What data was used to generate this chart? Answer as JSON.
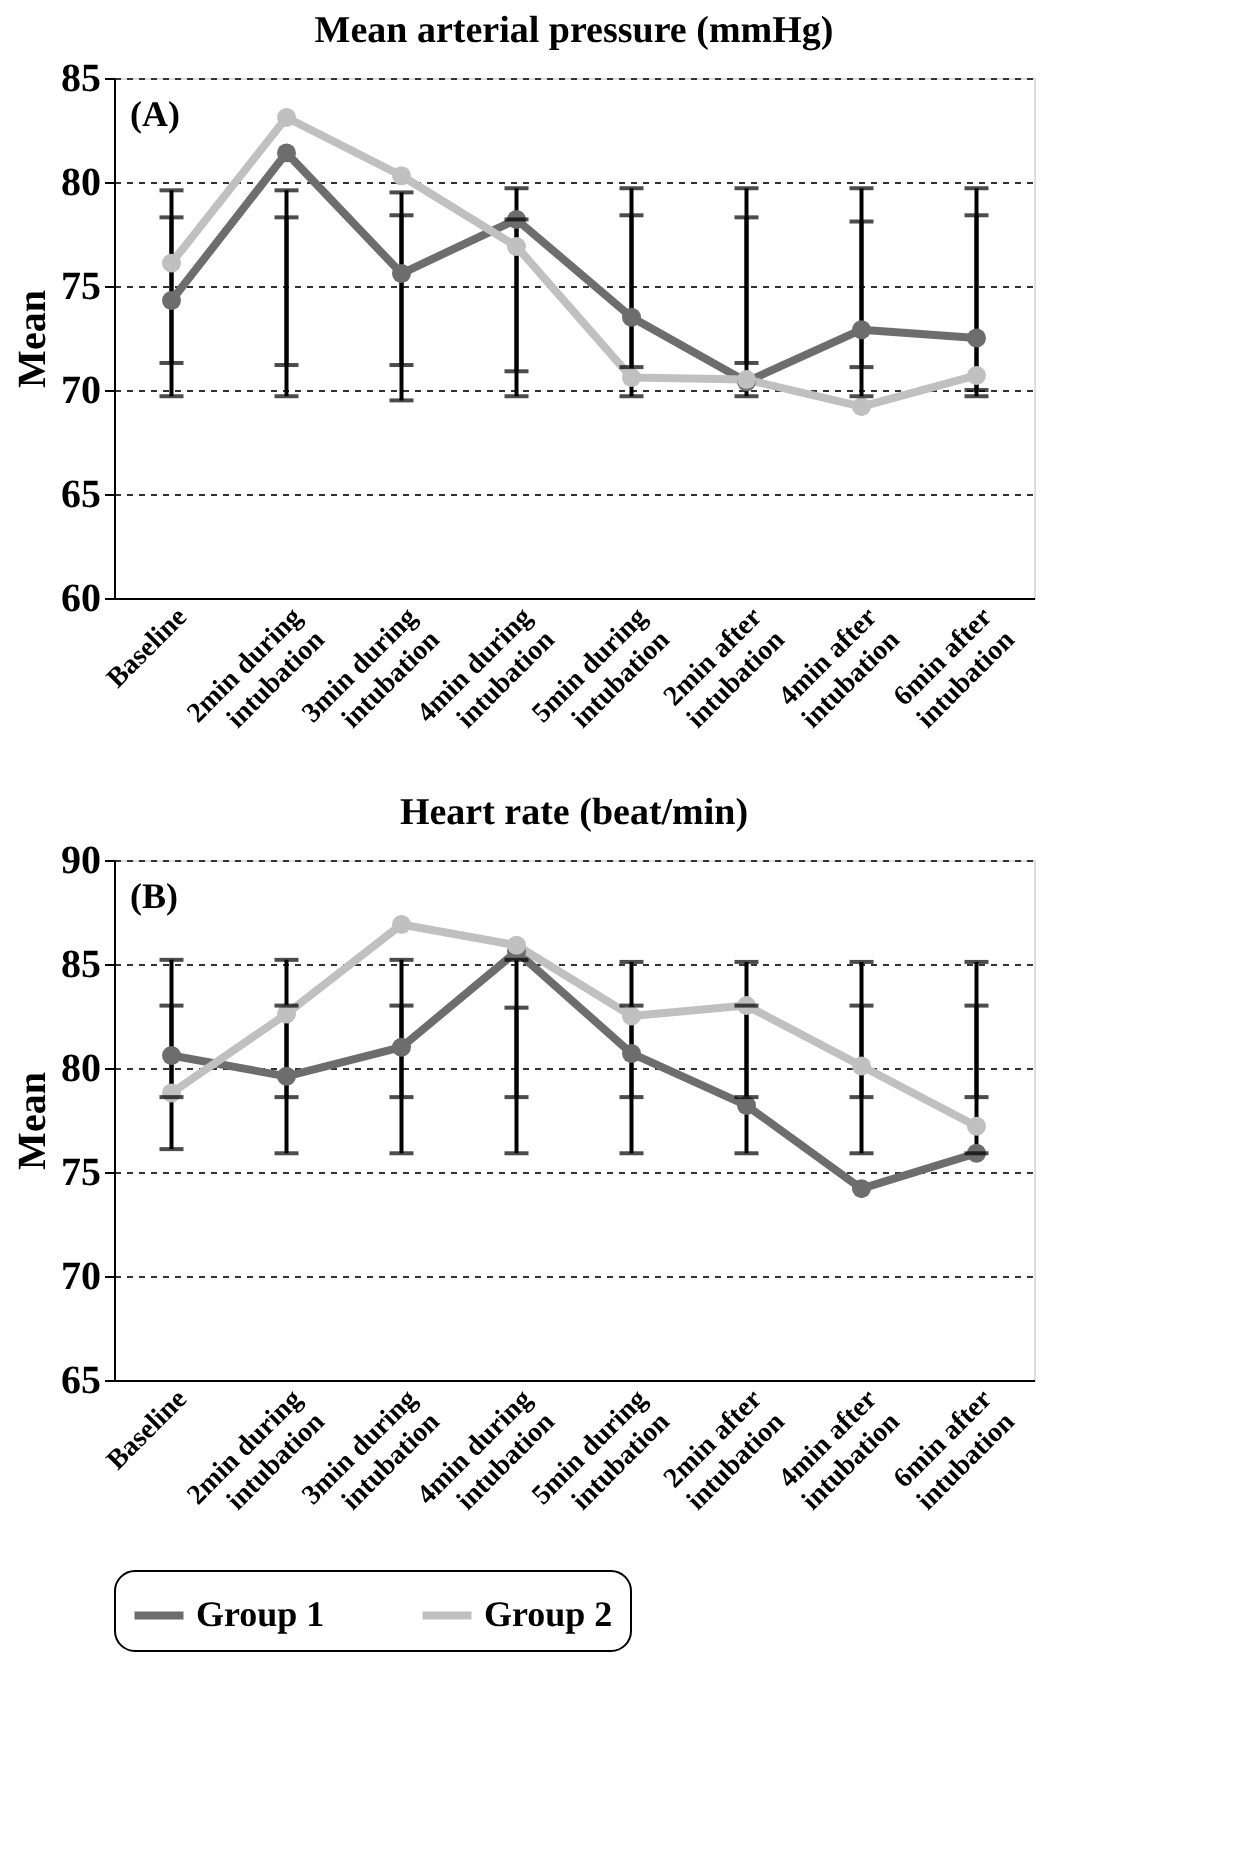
{
  "chart_data": [
    {
      "type": "line",
      "title": "Mean arterial pressure (mmHg)",
      "ylabel": "Mean",
      "annotations": [
        "(A)"
      ],
      "categories": [
        "Baseline",
        "2min during intubation",
        "3min during intubation",
        "4min during intubation",
        "5min during intubation",
        "2min after intubation",
        "4min after intubation",
        "6min after intubation"
      ],
      "series": [
        {
          "name": "Group 1",
          "color": "#6d6d6d",
          "values": [
            74.3,
            81.4,
            75.6,
            78.2,
            73.5,
            70.4,
            72.9,
            72.5
          ],
          "errors": [
            [
              71.3,
              79.6
            ],
            [
              71.2,
              79.6
            ],
            [
              71.2,
              79.5
            ],
            [
              70.9,
              79.7
            ],
            [
              71.1,
              79.7
            ],
            [
              71.3,
              79.7
            ],
            [
              71.1,
              79.7
            ],
            [
              70.0,
              79.7
            ]
          ]
        },
        {
          "name": "Group 2",
          "color": "#c0c0c0",
          "values": [
            76.1,
            83.1,
            80.3,
            76.9,
            70.6,
            70.5,
            69.2,
            70.7
          ],
          "errors": [
            [
              69.7,
              78.3
            ],
            [
              69.7,
              78.3
            ],
            [
              69.5,
              78.4
            ],
            [
              69.7,
              78.2
            ],
            [
              69.7,
              78.4
            ],
            [
              69.7,
              78.3
            ],
            [
              69.7,
              78.1
            ],
            [
              69.7,
              78.4
            ]
          ]
        }
      ],
      "ylim": [
        60,
        85
      ],
      "yticks": [
        60,
        65,
        70,
        75,
        80,
        85
      ],
      "grid": "y",
      "legend": "bottom",
      "marker": "circle",
      "line_style": "solid"
    },
    {
      "type": "line",
      "title": "Heart rate (beat/min)",
      "ylabel": "Mean",
      "annotations": [
        "(B)"
      ],
      "categories": [
        "Baseline",
        "2min during intubation",
        "3min during intubation",
        "4min during intubation",
        "5min during intubation",
        "2min after intubation",
        "4min after intubation",
        "6min after intubation"
      ],
      "series": [
        {
          "name": "Group 1",
          "color": "#6d6d6d",
          "values": [
            80.6,
            79.6,
            81.0,
            85.6,
            80.7,
            78.2,
            74.2,
            75.9
          ],
          "errors": [
            [
              78.6,
              85.2
            ],
            [
              78.6,
              85.2
            ],
            [
              78.6,
              85.2
            ],
            [
              78.6,
              85.2
            ],
            [
              78.6,
              85.1
            ],
            [
              78.6,
              85.1
            ],
            [
              78.6,
              85.1
            ],
            [
              78.6,
              85.1
            ]
          ]
        },
        {
          "name": "Group 2",
          "color": "#c0c0c0",
          "values": [
            78.8,
            82.6,
            86.9,
            85.9,
            82.5,
            83.0,
            80.1,
            77.2
          ],
          "errors": [
            [
              76.1,
              83.0
            ],
            [
              75.9,
              83.0
            ],
            [
              75.9,
              83.0
            ],
            [
              75.9,
              82.9
            ],
            [
              75.9,
              83.0
            ],
            [
              75.9,
              83.0
            ],
            [
              75.9,
              83.0
            ],
            [
              75.9,
              83.0
            ]
          ]
        }
      ],
      "ylim": [
        65,
        90
      ],
      "yticks": [
        65,
        70,
        75,
        80,
        85,
        90
      ],
      "grid": "y",
      "legend": "bottom",
      "marker": "circle",
      "line_style": "solid"
    }
  ]
}
